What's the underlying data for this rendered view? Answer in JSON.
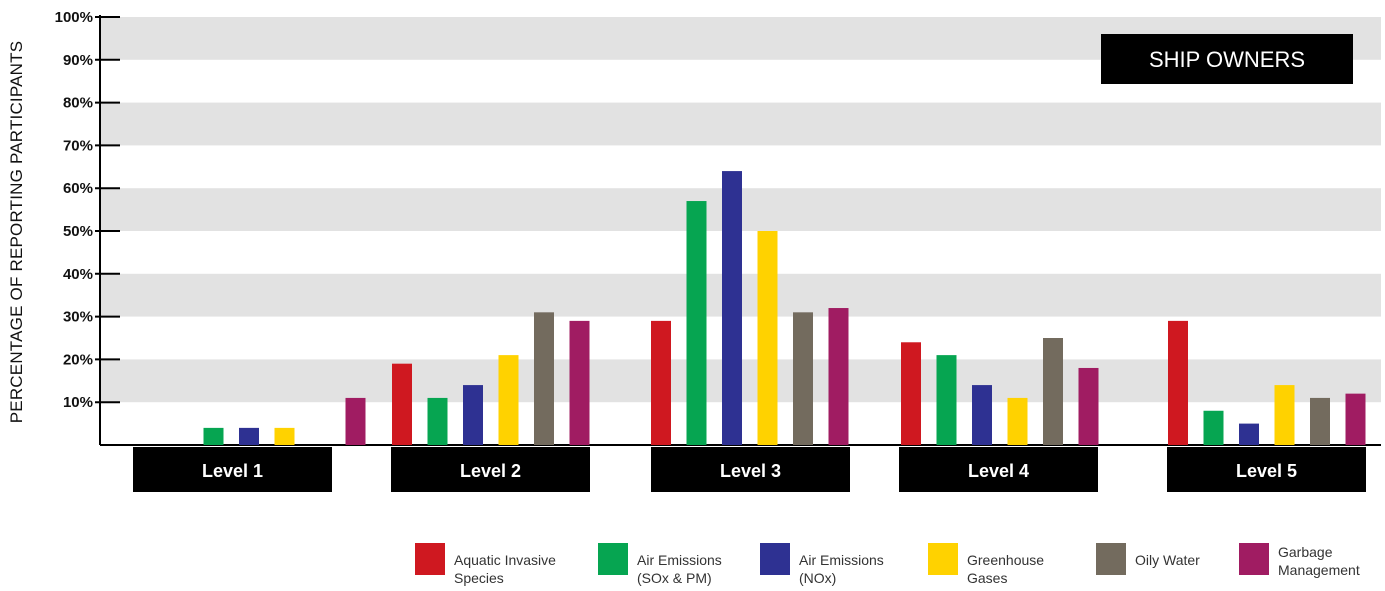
{
  "chart_data": {
    "type": "bar",
    "categories": [
      "Level 1",
      "Level 2",
      "Level 3",
      "Level 4",
      "Level 5"
    ],
    "ylabel": "PERCENTAGE OF REPORTING PARTICIPANTS",
    "ylim": [
      0,
      100
    ],
    "yticks": [
      "10%",
      "20%",
      "30%",
      "40%",
      "50%",
      "60%",
      "70%",
      "80%",
      "90%",
      "100%"
    ],
    "annotation": "SHIP OWNERS",
    "grid": "alternating bands",
    "legend_position": "bottom-right",
    "series": [
      {
        "name": "Aquatic Invasive Species",
        "color": "#cf1820",
        "values": [
          0,
          19,
          29,
          24,
          29
        ]
      },
      {
        "name": "Air Emissions (SOx & PM)",
        "color": "#06a551",
        "values": [
          4,
          11,
          57,
          21,
          8
        ]
      },
      {
        "name": "Air Emissions (NOx)",
        "color": "#2e3192",
        "values": [
          4,
          14,
          64,
          14,
          5
        ]
      },
      {
        "name": "Greenhouse Gases",
        "color": "#ffd200",
        "values": [
          4,
          21,
          50,
          11,
          14
        ]
      },
      {
        "name": "Oily Water",
        "color": "#736b5e",
        "values": [
          0,
          31,
          31,
          25,
          11
        ]
      },
      {
        "name": "Garbage Management",
        "color": "#a01c62",
        "values": [
          11,
          29,
          32,
          18,
          12
        ]
      }
    ]
  },
  "legend": [
    {
      "line1": "Aquatic Invasive",
      "line2": "Species"
    },
    {
      "line1": "Air Emissions",
      "line2": "(SOx & PM)"
    },
    {
      "line1": "Air Emissions",
      "line2": "(NOx)"
    },
    {
      "line1": "Greenhouse",
      "line2": "Gases"
    },
    {
      "line1": "Oily Water",
      "line2": ""
    },
    {
      "line1": "Garbage",
      "line2": "Management"
    }
  ]
}
